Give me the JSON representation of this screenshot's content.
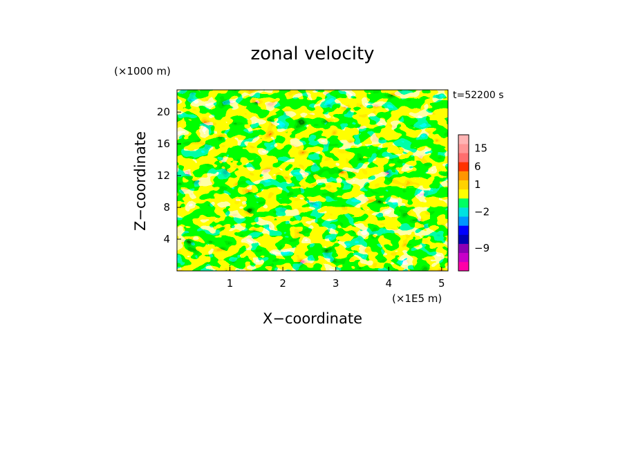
{
  "chart_data": {
    "type": "heatmap",
    "title": "zonal velocity",
    "xlabel": "X−coordinate",
    "ylabel": "Z−coordinate",
    "x_unit_label": "(×1E5 m)",
    "y_unit_label": "(×1000 m)",
    "time_label": "t=52200 s",
    "xlim": [
      0,
      5.12
    ],
    "ylim": [
      0,
      22.8
    ],
    "x_ticks": [
      "1",
      "2",
      "3",
      "4",
      "5"
    ],
    "x_tick_values": [
      1,
      2,
      3,
      4,
      5
    ],
    "y_ticks": [
      "4",
      "8",
      "12",
      "16",
      "20"
    ],
    "y_tick_values": [
      4,
      8,
      12,
      16,
      20
    ],
    "colorbar": {
      "levels": [
        {
          "color": "#ff00a8"
        },
        {
          "color": "#c800c8"
        },
        {
          "color": "#8c00b4"
        },
        {
          "color": "#0000b4"
        },
        {
          "color": "#0000ff"
        },
        {
          "color": "#0096ff"
        },
        {
          "color": "#00e1e1"
        },
        {
          "color": "#00ff64"
        },
        {
          "color": "#ffff00"
        },
        {
          "color": "#ffd200"
        },
        {
          "color": "#ff9600"
        },
        {
          "color": "#ff3200"
        },
        {
          "color": "#ff6e6e"
        },
        {
          "color": "#ff9696"
        },
        {
          "color": "#ffb4b4"
        }
      ],
      "tick_labels": [
        {
          "label": "−9",
          "level_index": 2
        },
        {
          "label": "−2",
          "level_index": 6
        },
        {
          "label": "1",
          "level_index": 9
        },
        {
          "label": "6",
          "level_index": 11
        },
        {
          "label": "15",
          "level_index": 13
        }
      ]
    },
    "field_description": "zonal velocity contour field; mostly 0 to 3 (yellow/green) with blue negative bands near z 6-18 and orange/red positive patches"
  }
}
